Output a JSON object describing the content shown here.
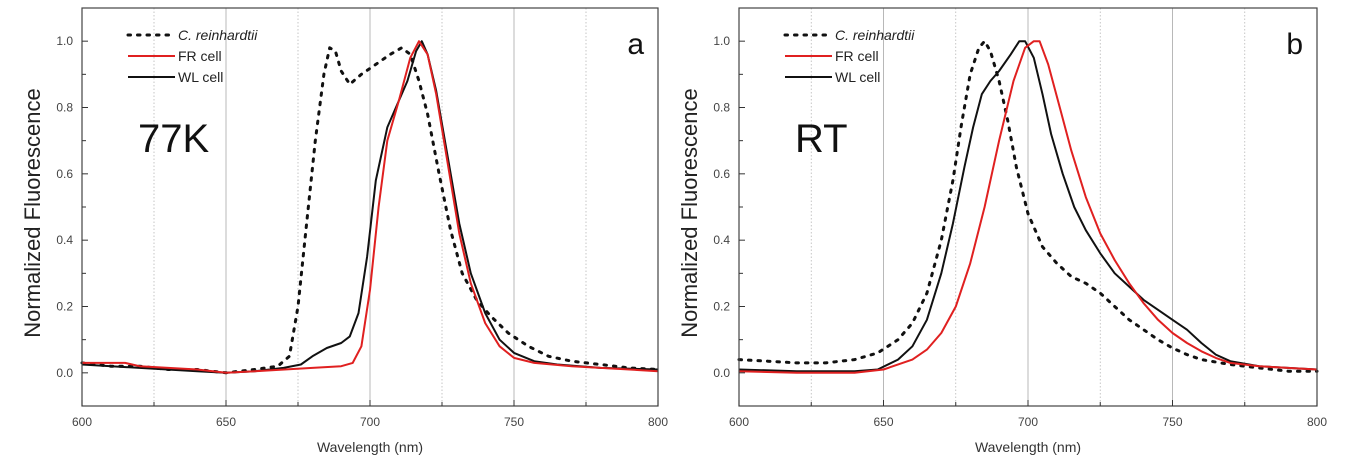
{
  "colors": {
    "fr": "#e02020",
    "wl": "#111111",
    "cr": "#111111",
    "grid": "#b8b8b8",
    "axis": "#333333"
  },
  "chart_data": [
    {
      "type": "line",
      "panel_letter": "a",
      "annotation": "77K",
      "xlabel": "Wavelength (nm)",
      "ylabel": "Normalized Fluorescence",
      "xlim": [
        600,
        800
      ],
      "ylim": [
        -0.1,
        1.1
      ],
      "xticks": [
        "600",
        "650",
        "700",
        "750",
        "800"
      ],
      "yticks": [
        "0.0",
        "0.2",
        "0.4",
        "0.6",
        "0.8",
        "1.0"
      ],
      "grid": true,
      "legend_position": "top-left",
      "series": [
        {
          "name": "C. reinhardtii",
          "style": "dotted",
          "color": "#111111",
          "x": [
            600,
            610,
            620,
            630,
            640,
            650,
            660,
            668,
            672,
            675,
            678,
            681,
            684,
            686,
            688,
            690,
            693,
            697,
            702,
            707,
            711,
            714,
            717,
            720,
            724,
            728,
            732,
            737,
            742,
            748,
            755,
            762,
            770,
            780,
            790,
            800
          ],
          "y": [
            0.03,
            0.02,
            0.02,
            0.01,
            0.01,
            0.0,
            0.01,
            0.02,
            0.05,
            0.2,
            0.45,
            0.7,
            0.9,
            0.98,
            0.97,
            0.91,
            0.87,
            0.9,
            0.93,
            0.96,
            0.98,
            0.96,
            0.88,
            0.78,
            0.6,
            0.43,
            0.3,
            0.22,
            0.17,
            0.12,
            0.08,
            0.05,
            0.035,
            0.025,
            0.015,
            0.01
          ]
        },
        {
          "name": "FR cell",
          "style": "solid",
          "color": "#e02020",
          "x": [
            600,
            615,
            620,
            640,
            650,
            660,
            680,
            690,
            694,
            697,
            700,
            703,
            706,
            710,
            714,
            717,
            720,
            723,
            727,
            731,
            735,
            740,
            745,
            750,
            757,
            770,
            800
          ],
          "y": [
            0.03,
            0.03,
            0.02,
            0.01,
            0.0,
            0.005,
            0.015,
            0.02,
            0.03,
            0.08,
            0.25,
            0.5,
            0.7,
            0.82,
            0.95,
            1.0,
            0.96,
            0.84,
            0.63,
            0.42,
            0.27,
            0.15,
            0.08,
            0.045,
            0.03,
            0.02,
            0.005
          ]
        },
        {
          "name": "WL cell",
          "style": "solid",
          "color": "#111111",
          "x": [
            600,
            620,
            640,
            650,
            660,
            670,
            676,
            680,
            685,
            690,
            693,
            696,
            699,
            702,
            706,
            710,
            713,
            716,
            718,
            720,
            723,
            727,
            731,
            735,
            740,
            745,
            750,
            757,
            765,
            780,
            800
          ],
          "y": [
            0.025,
            0.015,
            0.005,
            0.0,
            0.005,
            0.015,
            0.025,
            0.05,
            0.075,
            0.09,
            0.11,
            0.18,
            0.35,
            0.58,
            0.74,
            0.82,
            0.88,
            0.97,
            1.0,
            0.96,
            0.85,
            0.65,
            0.45,
            0.3,
            0.18,
            0.1,
            0.06,
            0.035,
            0.025,
            0.015,
            0.01
          ]
        }
      ]
    },
    {
      "type": "line",
      "panel_letter": "b",
      "annotation": "RT",
      "xlabel": "Wavelength (nm)",
      "ylabel": "Normalized Fluorescence",
      "xlim": [
        600,
        800
      ],
      "ylim": [
        -0.1,
        1.1
      ],
      "xticks": [
        "600",
        "650",
        "700",
        "750",
        "800"
      ],
      "yticks": [
        "0.0",
        "0.2",
        "0.4",
        "0.6",
        "0.8",
        "1.0"
      ],
      "grid": true,
      "legend_position": "top-left",
      "series": [
        {
          "name": "C. reinhardtii",
          "style": "dotted",
          "color": "#111111",
          "x": [
            600,
            610,
            620,
            630,
            640,
            648,
            655,
            660,
            665,
            670,
            674,
            677,
            680,
            683,
            685,
            687,
            690,
            693,
            696,
            700,
            705,
            710,
            715,
            720,
            725,
            730,
            735,
            740,
            745,
            750,
            755,
            760,
            770,
            780,
            790,
            800
          ],
          "y": [
            0.04,
            0.035,
            0.03,
            0.03,
            0.04,
            0.06,
            0.1,
            0.15,
            0.24,
            0.4,
            0.58,
            0.75,
            0.9,
            0.98,
            1.0,
            0.97,
            0.88,
            0.76,
            0.62,
            0.48,
            0.38,
            0.33,
            0.29,
            0.27,
            0.24,
            0.2,
            0.16,
            0.13,
            0.1,
            0.075,
            0.055,
            0.04,
            0.025,
            0.015,
            0.005,
            0.005
          ]
        },
        {
          "name": "FR cell",
          "style": "solid",
          "color": "#e02020",
          "x": [
            600,
            620,
            640,
            650,
            660,
            665,
            670,
            675,
            680,
            685,
            690,
            695,
            699,
            702,
            704,
            707,
            711,
            715,
            720,
            725,
            730,
            735,
            740,
            745,
            750,
            755,
            760,
            765,
            770,
            780,
            800
          ],
          "y": [
            0.005,
            0.0,
            0.0,
            0.01,
            0.04,
            0.07,
            0.12,
            0.2,
            0.33,
            0.5,
            0.7,
            0.88,
            0.98,
            1.0,
            1.0,
            0.93,
            0.8,
            0.67,
            0.53,
            0.42,
            0.34,
            0.27,
            0.21,
            0.16,
            0.12,
            0.09,
            0.065,
            0.045,
            0.03,
            0.02,
            0.01
          ]
        },
        {
          "name": "WL cell",
          "style": "solid",
          "color": "#111111",
          "x": [
            600,
            620,
            640,
            648,
            655,
            660,
            665,
            670,
            674,
            678,
            681,
            684,
            687,
            690,
            694,
            697,
            699,
            702,
            705,
            708,
            712,
            716,
            720,
            725,
            730,
            735,
            740,
            745,
            750,
            755,
            760,
            765,
            770,
            780,
            800
          ],
          "y": [
            0.01,
            0.005,
            0.005,
            0.01,
            0.04,
            0.08,
            0.16,
            0.3,
            0.45,
            0.62,
            0.74,
            0.84,
            0.88,
            0.91,
            0.96,
            1.0,
            1.0,
            0.95,
            0.84,
            0.72,
            0.6,
            0.5,
            0.43,
            0.36,
            0.3,
            0.26,
            0.22,
            0.19,
            0.16,
            0.13,
            0.09,
            0.055,
            0.035,
            0.02,
            0.01
          ]
        }
      ]
    }
  ]
}
